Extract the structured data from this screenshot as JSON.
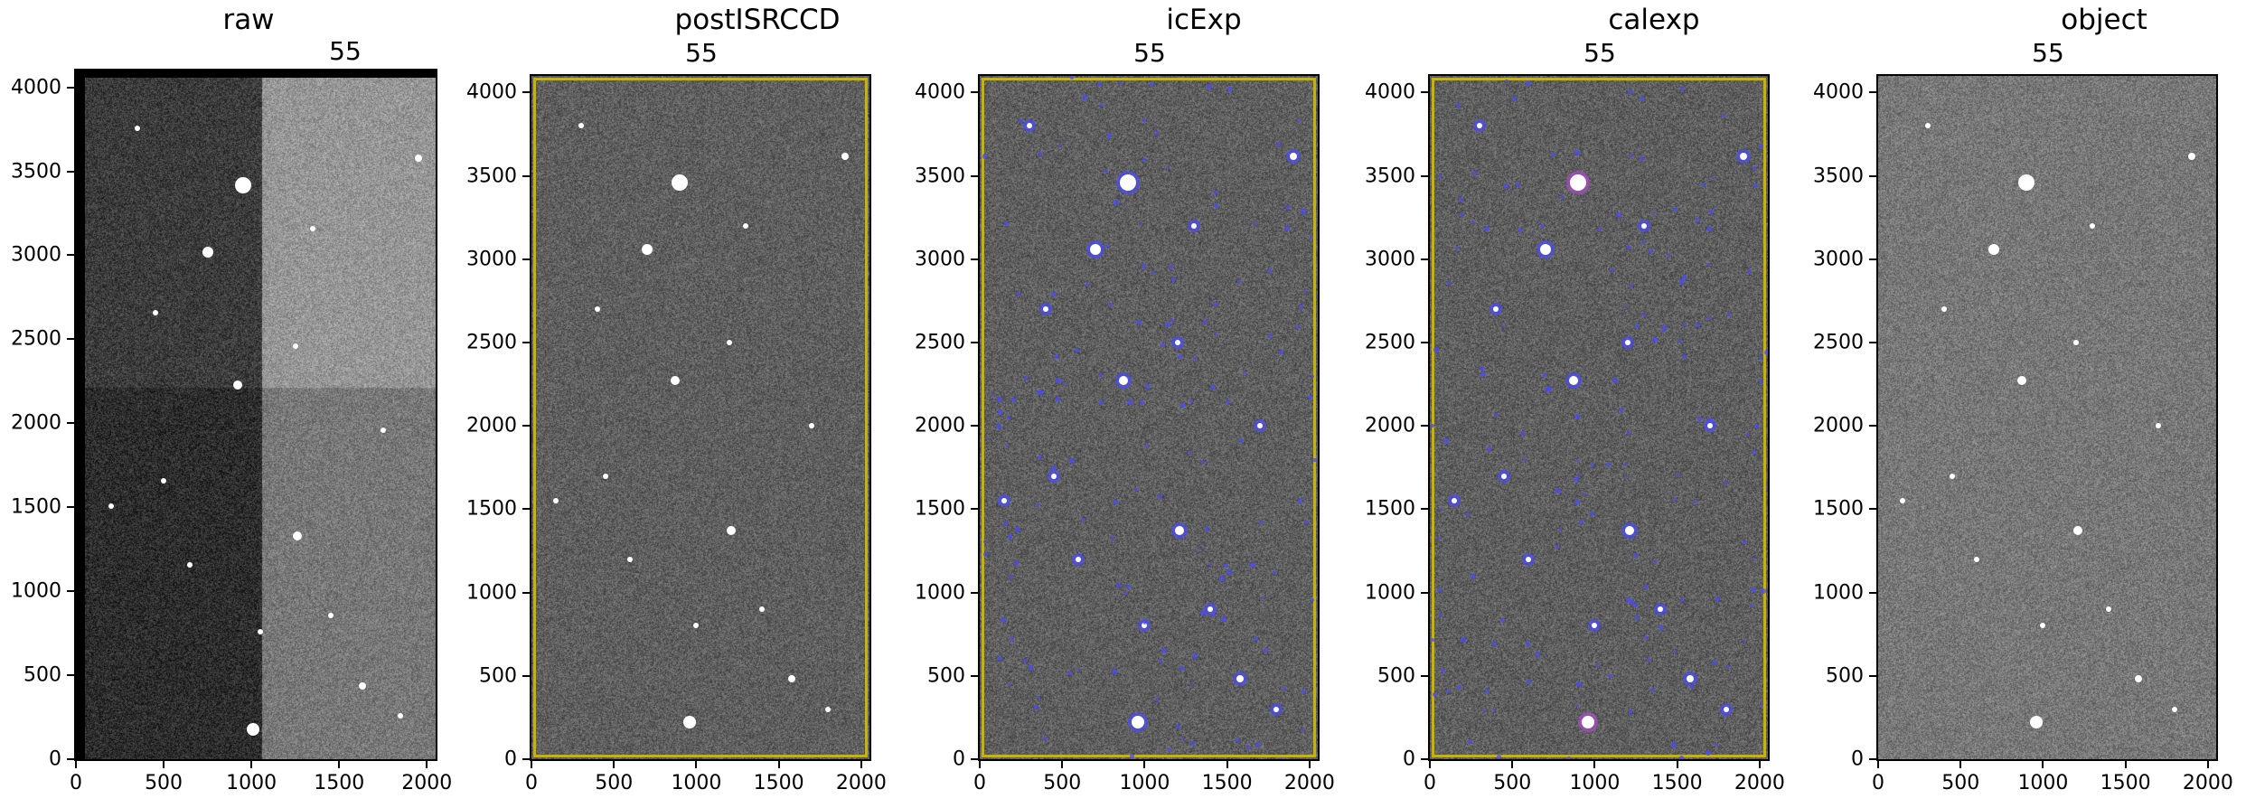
{
  "panels": [
    {
      "title": "raw",
      "number": "55"
    },
    {
      "title": "postISRCCD",
      "number": "55"
    },
    {
      "title": "icExp",
      "number": "55"
    },
    {
      "title": "calexp",
      "number": "55"
    },
    {
      "title": "object",
      "number": "55"
    }
  ],
  "axes": {
    "y_ticks": [
      "0",
      "500",
      "1000",
      "1500",
      "2000",
      "2500",
      "3000",
      "3500",
      "4000"
    ],
    "x_ticks": [
      "0",
      "500",
      "1000",
      "1500",
      "2000"
    ],
    "ylim": [
      0,
      4100
    ],
    "xlim": [
      0,
      2050
    ]
  },
  "colors": {
    "detection_mask": "#4a4aff",
    "edge_mask": "#c8b400",
    "object_mask": "#b04ad0"
  }
}
